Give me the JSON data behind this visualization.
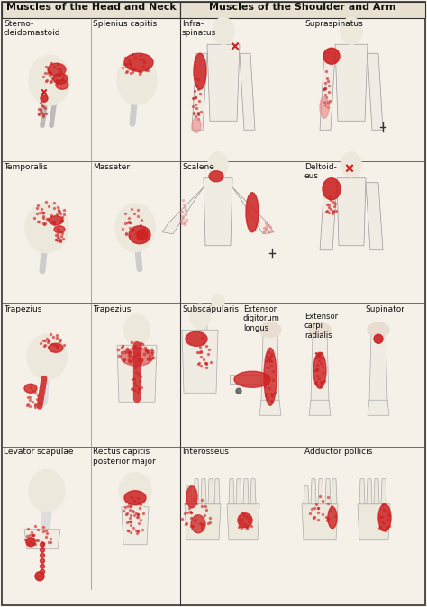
{
  "title_left": "Muscles of the Head and Neck",
  "title_right": "Muscles of the Shoulder and Arm",
  "bg_color": "#f5f0e8",
  "border_color": "#333333",
  "text_color": "#111111",
  "red_color": "#cc2222",
  "red_light": "#e88888",
  "title_fontsize": 9,
  "label_fontsize": 6.5,
  "fig_width": 4.74,
  "fig_height": 6.74,
  "left_panel_labels": [
    [
      "Sterno-\ncleidomastoid",
      "Splenius capitis"
    ],
    [
      "Temporalis",
      "Masseter"
    ],
    [
      "Trapezius",
      "Trapezius"
    ],
    [
      "Levator scapulae",
      "Rectus capitis\nposterior major"
    ]
  ],
  "right_panel_labels": [
    [
      "Infra-\nspinatus",
      "Supraspinatus"
    ],
    [
      "Scalene",
      "Deltoid-\neus"
    ],
    [
      "Subscapularis",
      "Extensor\ndigitorum\nlongus",
      "Extensor\ncarpi\nradialis",
      "Supinator"
    ],
    [
      "Interosseus",
      "Adductor pollicis"
    ]
  ]
}
